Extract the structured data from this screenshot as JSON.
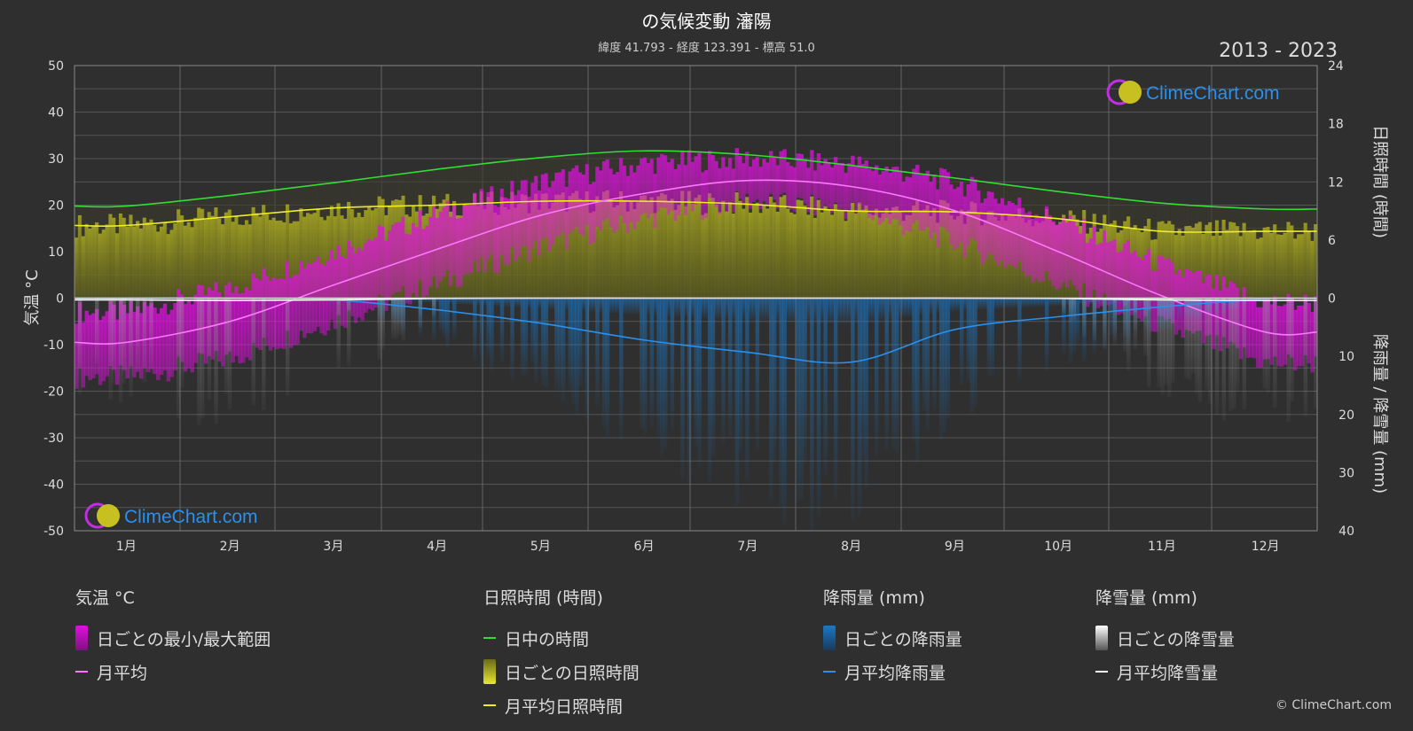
{
  "title": "の気候変動 瀋陽",
  "subtitle": "緯度 41.793 - 経度 123.391 - 標高 51.0",
  "years": "2013 - 2023",
  "watermark": "ClimeChart.com",
  "copyright": "© ClimeChart.com",
  "colors": {
    "background": "#2f2f2f",
    "temp_range": "#e010e0",
    "temp_avg": "#ff77ff",
    "daylight": "#33dd33",
    "sunshine_band": "#b8b820",
    "sunshine_avg": "#eeee22",
    "rain": "#1a78c8",
    "rain_avg": "#2a90ee",
    "snow": "#aaaaaa",
    "snow_avg": "#ffffff"
  },
  "chart_data": {
    "type": "line",
    "categories": [
      "1月",
      "2月",
      "3月",
      "4月",
      "5月",
      "6月",
      "7月",
      "8月",
      "9月",
      "10月",
      "11月",
      "12月"
    ],
    "left_axis": {
      "label": "気温 °C",
      "ylim": [
        -50,
        50
      ],
      "ticks": [
        50,
        40,
        30,
        20,
        10,
        0,
        -10,
        -20,
        -30,
        -40,
        -50
      ]
    },
    "right_axis_top": {
      "label": "日照時間 (時間)",
      "ylim": [
        0,
        24
      ],
      "ticks": [
        24,
        18,
        12,
        6,
        0
      ]
    },
    "right_axis_bottom": {
      "label": "降雨量 / 降雪量 (mm)",
      "ylim": [
        0,
        40
      ],
      "ticks": [
        0,
        10,
        20,
        30,
        40
      ]
    },
    "grid": true,
    "series": [
      {
        "name": "月平均",
        "unit": "°C",
        "values": [
          -9.5,
          -5.0,
          2.8,
          10.5,
          17.8,
          22.5,
          25.3,
          24.0,
          18.8,
          10.0,
          0.5,
          -7.3
        ]
      },
      {
        "name": "日中の時間",
        "unit": "時間",
        "values": [
          9.5,
          10.6,
          11.9,
          13.3,
          14.5,
          15.2,
          14.8,
          13.7,
          12.4,
          11.0,
          9.8,
          9.2
        ]
      },
      {
        "name": "月平均日照時間",
        "unit": "時間",
        "values": [
          7.5,
          8.4,
          9.3,
          9.6,
          10.0,
          10.0,
          9.7,
          9.0,
          8.9,
          8.2,
          6.9,
          6.9
        ]
      },
      {
        "name": "月平均降雨量",
        "unit": "mm",
        "values": [
          0.0,
          0.0,
          0.3,
          2.0,
          4.3,
          7.2,
          9.3,
          11.0,
          5.4,
          3.2,
          1.5,
          0.1
        ]
      },
      {
        "name": "月平均降雪量",
        "unit": "mm",
        "values": [
          0.3,
          0.4,
          0.3,
          0.05,
          0,
          0,
          0,
          0,
          0,
          0.05,
          0.3,
          0.4
        ]
      }
    ],
    "temp_range": {
      "name": "日ごとの最小/最大範囲",
      "min": [
        -17,
        -13,
        -5,
        3,
        11,
        17,
        21,
        19,
        12,
        3,
        -6,
        -14
      ],
      "max": [
        -3,
        2,
        10,
        18,
        25,
        29,
        30,
        29,
        25,
        17,
        7,
        -1
      ]
    }
  },
  "legend": {
    "groups": [
      {
        "title": "気温 °C",
        "items": [
          {
            "label": "日ごとの最小/最大範囲",
            "kind": "box",
            "color": "#e010e0"
          },
          {
            "label": "月平均",
            "kind": "line",
            "color": "#ff77ff"
          }
        ]
      },
      {
        "title": "日照時間 (時間)",
        "items": [
          {
            "label": "日中の時間",
            "kind": "line",
            "color": "#33dd33"
          },
          {
            "label": "日ごとの日照時間",
            "kind": "box",
            "color": "#c8c830"
          },
          {
            "label": "月平均日照時間",
            "kind": "line",
            "color": "#eeee22"
          }
        ]
      },
      {
        "title": "降雨量 (mm)",
        "items": [
          {
            "label": "日ごとの降雨量",
            "kind": "box",
            "color": "#1a78c8"
          },
          {
            "label": "月平均降雨量",
            "kind": "line",
            "color": "#2a90ee"
          }
        ]
      },
      {
        "title": "降雪量 (mm)",
        "items": [
          {
            "label": "日ごとの降雪量",
            "kind": "box",
            "color": "#dddddd"
          },
          {
            "label": "月平均降雪量",
            "kind": "line",
            "color": "#ffffff"
          }
        ]
      }
    ]
  }
}
